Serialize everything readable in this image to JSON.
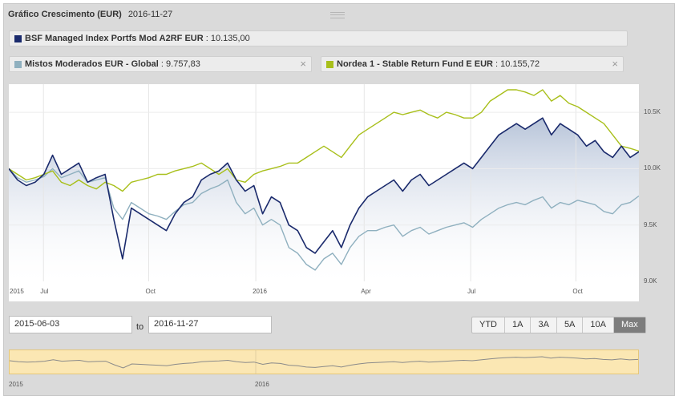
{
  "header": {
    "title": "Gráfico Crescimento (EUR)",
    "date": "2016-11-27"
  },
  "legend": [
    {
      "name": "BSF Managed Index Portfs Mod A2RF EUR",
      "value": ": 10.135,00",
      "color": "#1a2a6c",
      "closable": false
    },
    {
      "name": "Mistos Moderados EUR - Global",
      "value": ": 9.757,83",
      "color": "#8fb0bf",
      "closable": true
    },
    {
      "name": "Nordea 1 - Stable Return Fund E EUR",
      "value": ": 10.155,72",
      "color": "#a8bf1a",
      "closable": true
    }
  ],
  "close_glyph": "×",
  "range": {
    "from": "2015-06-03",
    "to_label": "to",
    "to": "2016-11-27",
    "buttons": [
      "YTD",
      "1A",
      "3A",
      "5A",
      "10A",
      "Max"
    ],
    "active": "Max"
  },
  "navigator": {
    "labels": [
      "2015",
      "2016"
    ]
  },
  "chart_data": {
    "type": "line",
    "x_tick_labels": [
      "2015",
      "Jul",
      "Oct",
      "2016",
      "Apr",
      "Jul",
      "Oct"
    ],
    "y_tick_labels": [
      "10.5K",
      "10.0K",
      "9.5K",
      "9.0K"
    ],
    "ylim": [
      9000,
      10750
    ],
    "x_range": [
      "2015-06-03",
      "2016-11-27"
    ],
    "series": [
      {
        "name": "BSF Managed Index Portfs Mod A2RF EUR",
        "color": "#1a2a6c",
        "fill": true,
        "values": [
          10000,
          9900,
          9850,
          9880,
          9950,
          10120,
          9950,
          10000,
          10050,
          9880,
          9920,
          9950,
          9550,
          9200,
          9650,
          9600,
          9550,
          9500,
          9450,
          9600,
          9700,
          9750,
          9900,
          9950,
          9980,
          10050,
          9900,
          9800,
          9850,
          9600,
          9750,
          9700,
          9500,
          9450,
          9300,
          9250,
          9350,
          9450,
          9300,
          9500,
          9650,
          9750,
          9800,
          9850,
          9900,
          9800,
          9900,
          9950,
          9850,
          9900,
          9950,
          10000,
          10050,
          10000,
          10100,
          10200,
          10300,
          10350,
          10400,
          10350,
          10400,
          10450,
          10300,
          10400,
          10350,
          10300,
          10200,
          10250,
          10150,
          10100,
          10200,
          10100,
          10150
        ]
      },
      {
        "name": "Mistos Moderados EUR - Global",
        "color": "#8fb0bf",
        "fill": false,
        "values": [
          10000,
          9920,
          9880,
          9900,
          9930,
          10000,
          9920,
          9950,
          9980,
          9880,
          9900,
          9920,
          9650,
          9550,
          9700,
          9650,
          9600,
          9580,
          9550,
          9620,
          9680,
          9700,
          9780,
          9820,
          9850,
          9900,
          9700,
          9600,
          9650,
          9500,
          9550,
          9500,
          9300,
          9250,
          9150,
          9100,
          9200,
          9250,
          9150,
          9300,
          9400,
          9450,
          9450,
          9480,
          9500,
          9400,
          9450,
          9480,
          9420,
          9450,
          9480,
          9500,
          9520,
          9480,
          9550,
          9600,
          9650,
          9680,
          9700,
          9680,
          9720,
          9750,
          9650,
          9700,
          9680,
          9720,
          9700,
          9680,
          9620,
          9600,
          9680,
          9700,
          9758
        ]
      },
      {
        "name": "Nordea 1 - Stable Return Fund E EUR",
        "color": "#a8bf1a",
        "fill": false,
        "values": [
          10000,
          9950,
          9900,
          9920,
          9950,
          9980,
          9880,
          9850,
          9900,
          9850,
          9820,
          9880,
          9850,
          9800,
          9880,
          9900,
          9920,
          9950,
          9950,
          9980,
          10000,
          10020,
          10050,
          10000,
          9950,
          10000,
          9900,
          9880,
          9950,
          9980,
          10000,
          10020,
          10050,
          10050,
          10100,
          10150,
          10200,
          10150,
          10100,
          10200,
          10300,
          10350,
          10400,
          10450,
          10500,
          10480,
          10500,
          10520,
          10480,
          10450,
          10500,
          10480,
          10450,
          10450,
          10500,
          10600,
          10650,
          10700,
          10700,
          10680,
          10650,
          10700,
          10600,
          10650,
          10580,
          10550,
          10500,
          10450,
          10400,
          10300,
          10200,
          10180,
          10156
        ]
      }
    ]
  }
}
